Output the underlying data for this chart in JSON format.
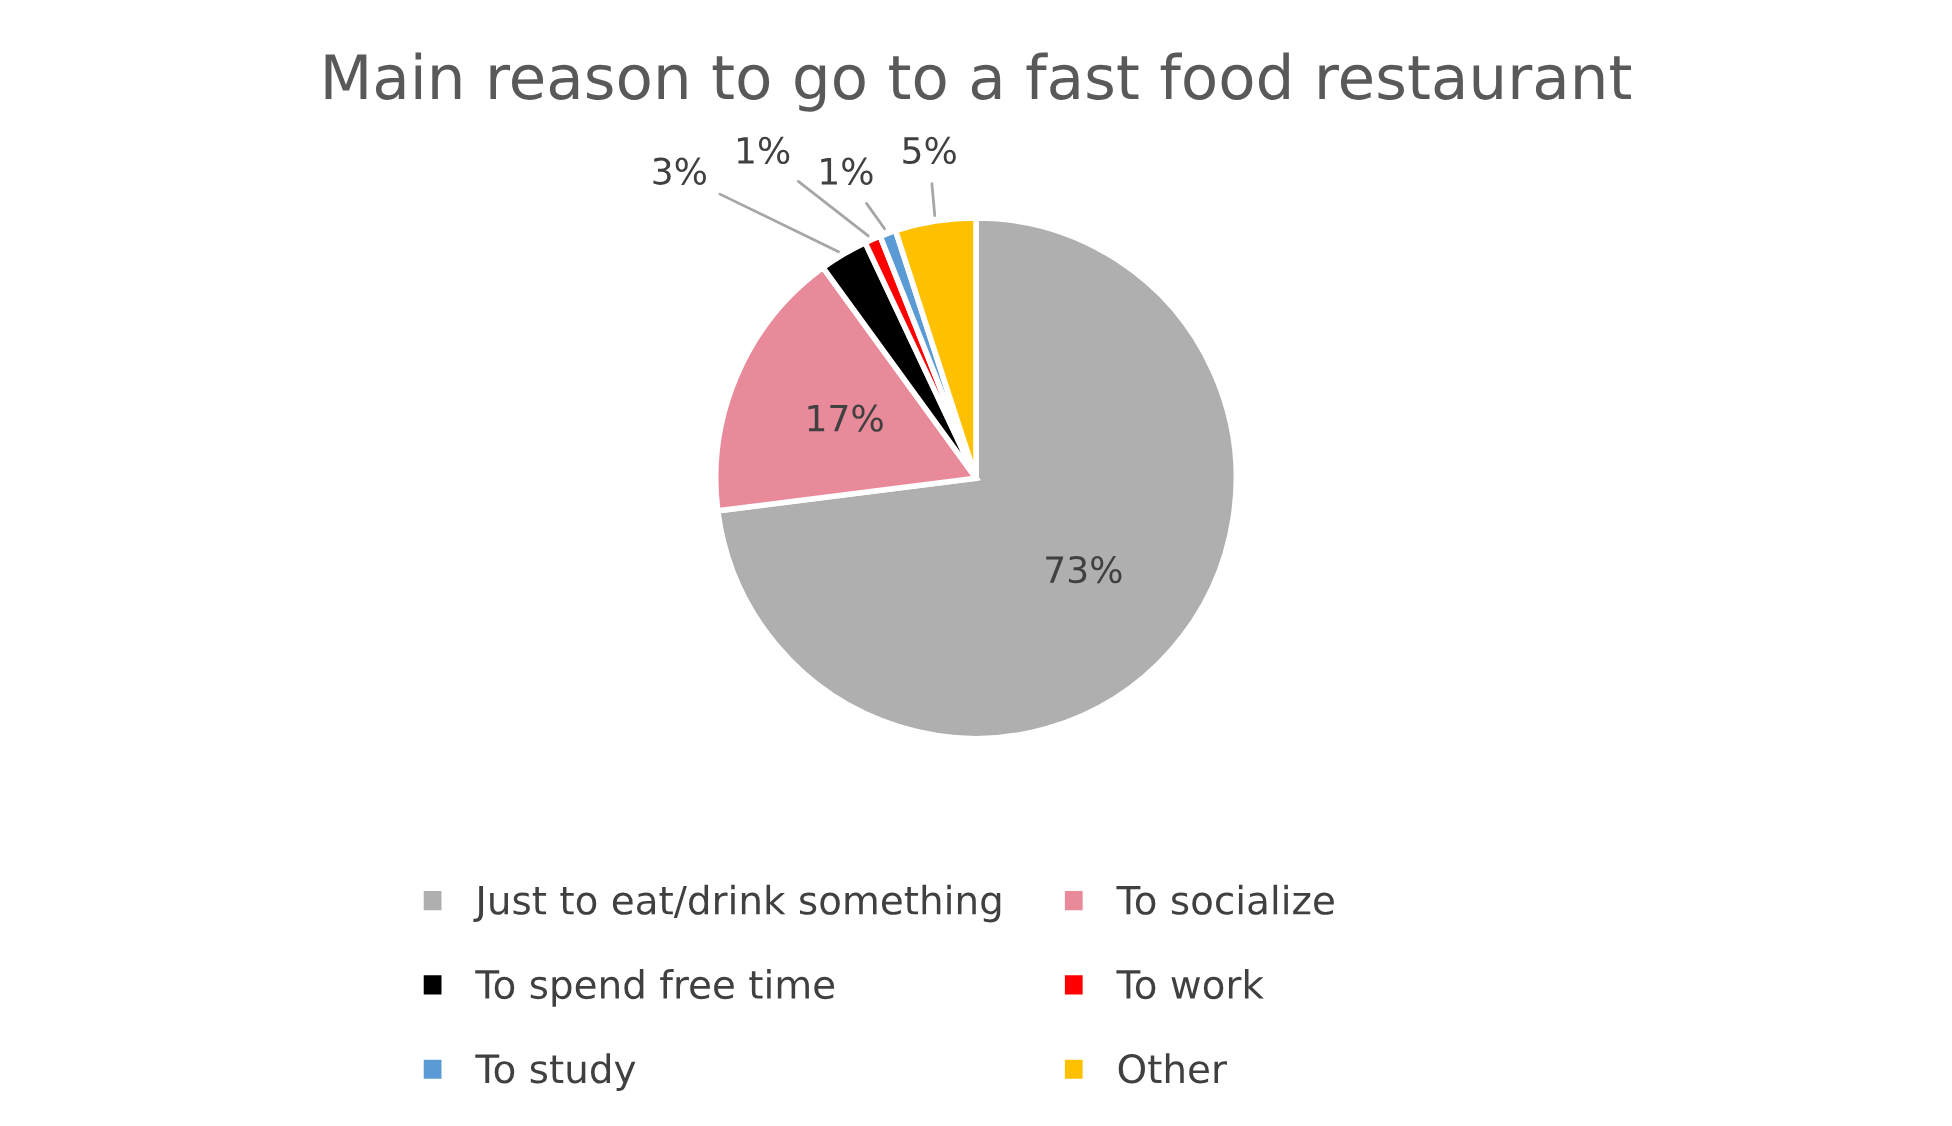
{
  "chart_data": {
    "type": "pie",
    "title": "Main reason to go to a fast food restaurant",
    "categories": [
      "Just to eat/drink something",
      "To socialize",
      "To spend free time",
      "To work",
      "To study",
      "Other"
    ],
    "values": [
      73,
      17,
      3,
      1,
      1,
      5
    ],
    "value_labels": [
      "73%",
      "17%",
      "3%",
      "1%",
      "1%",
      "5%"
    ],
    "colors": [
      "#afafaf",
      "#e88a9a",
      "#000000",
      "#ff0000",
      "#5b9bd5",
      "#ffc000"
    ],
    "legend": "bottom"
  }
}
